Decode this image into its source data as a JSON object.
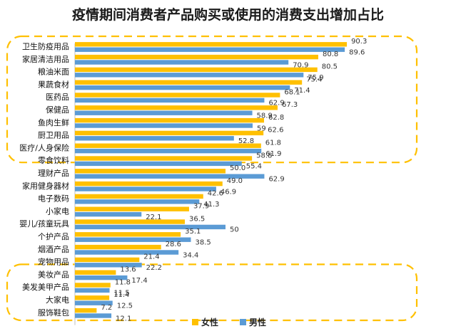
{
  "chart_data": {
    "type": "bar",
    "orientation": "horizontal",
    "title": "疫情期间消费者产品购买或使用的消费支出增加占比",
    "categories": [
      "卫生防疫用品",
      "家居清洁用品",
      "粮油米面",
      "果蔬食材",
      "医药品",
      "保健品",
      "鱼肉生鲜",
      "厨卫用品",
      "医疗/人身保险",
      "零食饮料",
      "理财产品",
      "家用健身器材",
      "电子数码",
      "小家电",
      "婴儿/孩童玩具",
      "个护产品",
      "烟酒产品",
      "宠物用品",
      "美妆产品",
      "美发美甲产品",
      "大家电",
      "服饰鞋包"
    ],
    "series": [
      {
        "name": "女性",
        "color": "#FFC000",
        "values": [
          90.3,
          80.8,
          80.5,
          75.4,
          68.1,
          67.3,
          62.8,
          62.6,
          61.8,
          58.8,
          50.0,
          49.0,
          42.6,
          37.9,
          36.5,
          35.1,
          28.6,
          21.4,
          13.6,
          11.8,
          11.4,
          7.2
        ]
      },
      {
        "name": "男性",
        "color": "#5B9BD5",
        "values": [
          89.6,
          70.9,
          75.9,
          71.4,
          62.9,
          58.9,
          59,
          52.8,
          61.9,
          55.4,
          62.9,
          46.9,
          41.3,
          22.1,
          50,
          38.5,
          34.4,
          22.2,
          17.4,
          11.5,
          12.5,
          12.1
        ]
      }
    ],
    "value_labels": {
      "女性": [
        "90.3",
        "80.8",
        "80.5",
        "75.4",
        "68.1",
        "67.3",
        "62.8",
        "62.6",
        "61.8",
        "58.8",
        "50.0",
        "49.0",
        "42.6",
        "37.9",
        "36.5",
        "35.1",
        "28.6",
        "21.4",
        "13.6",
        "11.8",
        "11.4",
        "7.2"
      ],
      "男性": [
        "89.6",
        "70.9",
        "75.9",
        "71.4",
        "62.9",
        "58.9",
        "59",
        "52.8",
        "61.9",
        "55.4",
        "62.9",
        "46.9",
        "41.3",
        "22.1",
        "50",
        "38.5",
        "34.4",
        "22.2",
        "17.4",
        "11.5",
        "12.5",
        "12.1"
      ]
    },
    "xlim": [
      0,
      100
    ],
    "grid": false,
    "legend": "bottom-center",
    "highlight_groups": [
      [
        "卫生防疫用品",
        "家居清洁用品",
        "粮油米面",
        "果蔬食材",
        "医药品",
        "保健品",
        "鱼肉生鲜",
        "厨卫用品",
        "医疗/人身保险"
      ],
      [
        "美妆产品",
        "美发美甲产品",
        "大家电",
        "服饰鞋包"
      ]
    ],
    "highlight_color": "#FFC000"
  }
}
